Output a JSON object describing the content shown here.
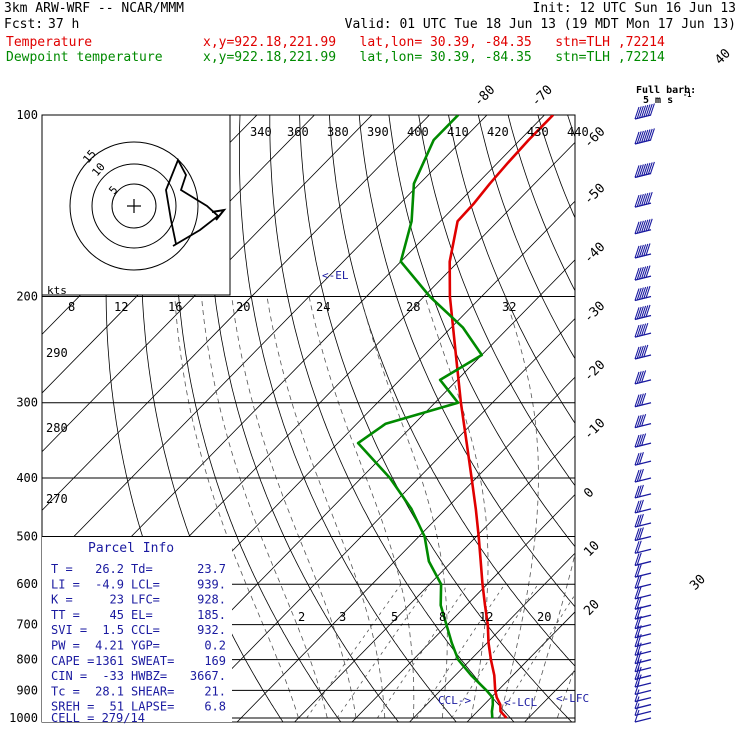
{
  "header": {
    "model": "3km ARW-WRF -- NCAR/MMM",
    "init": "Init: 12 UTC Sun 16 Jun 13",
    "fcst_label": "Fcst:",
    "fcst_value": "37 h",
    "valid": "Valid: 01 UTC Tue 18 Jun 13 (19 MDT Mon 17 Jun 13)",
    "temp_label": "Temperature",
    "temp_loc": "x,y=922.18,221.99   lat,lon= 30.39, -84.35   stn=TLH ,72214",
    "dew_label": "Dewpoint temperature",
    "dew_loc": "x,y=922.18,221.99   lat,lon= 30.39, -84.35   stn=TLH ,72214"
  },
  "colors": {
    "temperature": "#e00000",
    "dewpoint": "#008a00",
    "parcel_text": "#1a1aa0",
    "wind": "#1a1aa0",
    "grid": "#000000",
    "dashed": "#555555",
    "background": "#ffffff"
  },
  "barb_legend": {
    "title": "Full barb:",
    "value": "5 m s",
    "sup": "-1"
  },
  "chart_data": {
    "type": "line",
    "title": "",
    "y_axis": {
      "scale": "log",
      "range": [
        1000,
        100
      ],
      "ticks": [
        100,
        200,
        300,
        400,
        500,
        600,
        700,
        800,
        900,
        1000
      ],
      "tick_labels": [
        "100",
        "200",
        "300",
        "400",
        "500",
        "600",
        "700",
        "800",
        "900",
        "1000"
      ]
    },
    "x_axis": {
      "units": "degC",
      "skewed": true,
      "isotherm_labels": [
        "-80",
        "-70",
        "-60",
        "-50",
        "-40",
        "-30",
        "-20",
        "-10",
        "0",
        "10",
        "20",
        "30",
        "40"
      ]
    },
    "series": [
      {
        "name": "Temperature",
        "pressure": [
          1000,
          975,
          950,
          925,
          900,
          850,
          800,
          750,
          700,
          650,
          600,
          550,
          500,
          450,
          400,
          350,
          300,
          250,
          200,
          175,
          150,
          140,
          130,
          120,
          110,
          100
        ],
        "values": [
          26.2,
          24.0,
          22.8,
          21.0,
          19.5,
          16.8,
          13.5,
          10.2,
          7.0,
          3.2,
          -0.8,
          -5.0,
          -9.6,
          -14.8,
          -20.8,
          -27.6,
          -35.5,
          -44.5,
          -55.5,
          -61.5,
          -67.0,
          -67.2,
          -67.8,
          -68.2,
          -68.5,
          -68.5
        ]
      },
      {
        "name": "Dewpoint temperature",
        "pressure": [
          1000,
          975,
          950,
          925,
          900,
          850,
          800,
          750,
          700,
          650,
          600,
          550,
          500,
          450,
          400,
          350,
          325,
          300,
          275,
          250,
          225,
          200,
          175,
          150,
          130,
          110,
          100
        ],
        "values": [
          23.7,
          22.5,
          21.5,
          20.3,
          18.0,
          12.8,
          7.8,
          3.8,
          -0.2,
          -4.5,
          -8.0,
          -14.0,
          -19.0,
          -26.0,
          -35.0,
          -46.5,
          -45.0,
          -36.0,
          -43.0,
          -40.0,
          -48.0,
          -59.0,
          -70.0,
          -75.0,
          -81.0,
          -85.0,
          -85.0
        ]
      }
    ],
    "isentrope_labels": [
      "340",
      "360",
      "380",
      "390",
      "400",
      "410",
      "420",
      "430",
      "440",
      "290",
      "280",
      "270"
    ],
    "mixing_ratio_labels": [
      "2",
      "3",
      "5",
      "8",
      "12",
      "20"
    ],
    "annotations": [
      {
        "text": "<-EL",
        "pressure": 185
      },
      {
        "text": "CCL->",
        "pressure": 932
      },
      {
        "text": "<-LCL",
        "pressure": 939
      },
      {
        "text": "<-LFC",
        "pressure": 928
      }
    ],
    "wind_profile": {
      "pressure": [
        100,
        110,
        125,
        140,
        155,
        170,
        185,
        200,
        215,
        230,
        250,
        275,
        300,
        325,
        350,
        375,
        400,
        425,
        450,
        475,
        500,
        525,
        550,
        575,
        600,
        625,
        650,
        675,
        700,
        725,
        750,
        775,
        800,
        825,
        850,
        875,
        900,
        925,
        950,
        975,
        1000
      ],
      "barbs": [
        8,
        8,
        8,
        7,
        7,
        6,
        6,
        6,
        6,
        5,
        5,
        4,
        4,
        4,
        4,
        3,
        3,
        3,
        3,
        3,
        3,
        2,
        2,
        2,
        2,
        2,
        2,
        2,
        2,
        2,
        2,
        2,
        2,
        2,
        2,
        2,
        1,
        1,
        1,
        1,
        1
      ]
    },
    "hodograph": {
      "speed_unit": "kts",
      "ring_labels": [
        "5",
        "10",
        "15"
      ],
      "axis_labels": [
        "8",
        "12",
        "16",
        "20",
        "24",
        "28",
        "32"
      ],
      "trace": [
        [
          0,
          0
        ],
        [
          3,
          2
        ],
        [
          6,
          3
        ],
        [
          10,
          5
        ],
        [
          12,
          7
        ],
        [
          11,
          12
        ],
        [
          9,
          15
        ],
        [
          11,
          18
        ],
        [
          12,
          22
        ],
        [
          8,
          15
        ],
        [
          7,
          8
        ]
      ]
    }
  },
  "parcel_info": {
    "title": "Parcel Info",
    "rows": [
      {
        "l1": "T",
        "v1": "26.2",
        "l2": "Td",
        "v2": "23.7"
      },
      {
        "l1": "LI",
        "v1": "-4.9",
        "l2": "LCL",
        "v2": "939."
      },
      {
        "l1": "K",
        "v1": "23",
        "l2": "LFC",
        "v2": "928."
      },
      {
        "l1": "TT",
        "v1": "45",
        "l2": "EL",
        "v2": "185."
      },
      {
        "l1": "SVI",
        "v1": "1.5",
        "l2": "CCL",
        "v2": "932."
      },
      {
        "l1": "PW",
        "v1": "4.21",
        "l2": "YGP",
        "v2": "0.2"
      },
      {
        "l1": "CAPE",
        "v1": "1361",
        "l2": "SWEAT",
        "v2": "169"
      },
      {
        "l1": "CIN",
        "v1": "-33",
        "l2": "HWBZ",
        "v2": "3667."
      },
      {
        "l1": "Tc",
        "v1": "28.1",
        "l2": "SHEAR",
        "v2": "21."
      },
      {
        "l1": "SREH",
        "v1": "51",
        "l2": "LAPSE",
        "v2": "6.8"
      }
    ],
    "cell_label": "CELL",
    "cell_value": "279/14"
  }
}
